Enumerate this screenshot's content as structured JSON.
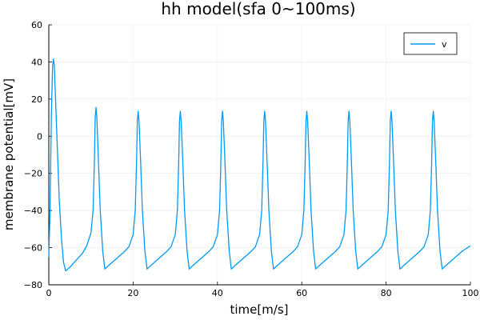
{
  "chart_data": {
    "type": "line",
    "title": "hh model(sfa 0~100ms)",
    "xlabel": "time[m/s]",
    "ylabel": "membrane potential[mV]",
    "xlim": [
      0,
      100
    ],
    "ylim": [
      -80,
      60
    ],
    "x_ticks": [
      0,
      20,
      40,
      60,
      80,
      100
    ],
    "y_ticks": [
      -80,
      -60,
      -40,
      -20,
      0,
      20,
      40,
      60
    ],
    "x_tick_labels": [
      "0",
      "20",
      "40",
      "60",
      "80",
      "100"
    ],
    "y_tick_labels": [
      "−80",
      "−60",
      "−40",
      "−20",
      "0",
      "20",
      "40",
      "60"
    ],
    "grid": true,
    "legend_position": "top-right",
    "series": [
      {
        "name": "v",
        "color": "#009AFA",
        "points": [
          [
            0,
            -65
          ],
          [
            0.3,
            -40
          ],
          [
            0.6,
            10
          ],
          [
            0.9,
            38
          ],
          [
            1.1,
            41.5
          ],
          [
            1.3,
            38
          ],
          [
            1.6,
            20
          ],
          [
            2.0,
            -5
          ],
          [
            2.5,
            -35
          ],
          [
            3.0,
            -55
          ],
          [
            3.5,
            -68
          ],
          [
            4.0,
            -72.5
          ],
          [
            5,
            -70.5
          ],
          [
            6,
            -68
          ],
          [
            7,
            -65.5
          ],
          [
            8,
            -63
          ],
          [
            9,
            -59
          ],
          [
            10,
            -52
          ],
          [
            10.5,
            -40
          ],
          [
            10.8,
            -15
          ],
          [
            11.0,
            10
          ],
          [
            11.2,
            15.5
          ],
          [
            11.4,
            10
          ],
          [
            11.8,
            -15
          ],
          [
            12.2,
            -40
          ],
          [
            12.8,
            -62
          ],
          [
            13.3,
            -71.5
          ],
          [
            14,
            -70
          ],
          [
            15,
            -68
          ],
          [
            16,
            -66
          ],
          [
            17,
            -64
          ],
          [
            18,
            -62
          ],
          [
            19,
            -59.5
          ],
          [
            20,
            -53
          ],
          [
            20.5,
            -40
          ],
          [
            20.8,
            -15
          ],
          [
            21.0,
            8
          ],
          [
            21.2,
            13.5
          ],
          [
            21.4,
            8
          ],
          [
            21.8,
            -15
          ],
          [
            22.2,
            -40
          ],
          [
            22.8,
            -62
          ],
          [
            23.3,
            -71.5
          ],
          [
            24,
            -70
          ],
          [
            25,
            -68
          ],
          [
            26,
            -66
          ],
          [
            27,
            -64
          ],
          [
            28,
            -62
          ],
          [
            29,
            -59.5
          ],
          [
            30,
            -53
          ],
          [
            30.5,
            -40
          ],
          [
            30.8,
            -15
          ],
          [
            31.0,
            8
          ],
          [
            31.2,
            13.5
          ],
          [
            31.4,
            8
          ],
          [
            31.8,
            -15
          ],
          [
            32.2,
            -40
          ],
          [
            32.8,
            -62
          ],
          [
            33.3,
            -71.5
          ],
          [
            34,
            -70
          ],
          [
            35,
            -68
          ],
          [
            36,
            -66
          ],
          [
            37,
            -64
          ],
          [
            38,
            -62
          ],
          [
            39,
            -59.5
          ],
          [
            40,
            -53
          ],
          [
            40.5,
            -40
          ],
          [
            40.8,
            -15
          ],
          [
            41.0,
            8
          ],
          [
            41.2,
            13.5
          ],
          [
            41.4,
            8
          ],
          [
            41.8,
            -15
          ],
          [
            42.2,
            -40
          ],
          [
            42.8,
            -62
          ],
          [
            43.3,
            -71.5
          ],
          [
            44,
            -70
          ],
          [
            45,
            -68
          ],
          [
            46,
            -66
          ],
          [
            47,
            -64
          ],
          [
            48,
            -62
          ],
          [
            49,
            -59.5
          ],
          [
            50,
            -53
          ],
          [
            50.5,
            -40
          ],
          [
            50.8,
            -15
          ],
          [
            51.0,
            8
          ],
          [
            51.2,
            13.5
          ],
          [
            51.4,
            8
          ],
          [
            51.8,
            -15
          ],
          [
            52.2,
            -40
          ],
          [
            52.8,
            -62
          ],
          [
            53.3,
            -71.5
          ],
          [
            54,
            -70
          ],
          [
            55,
            -68
          ],
          [
            56,
            -66
          ],
          [
            57,
            -64
          ],
          [
            58,
            -62
          ],
          [
            59,
            -59.5
          ],
          [
            60,
            -53
          ],
          [
            60.5,
            -40
          ],
          [
            60.8,
            -15
          ],
          [
            61.0,
            8
          ],
          [
            61.2,
            13.5
          ],
          [
            61.4,
            8
          ],
          [
            61.8,
            -15
          ],
          [
            62.2,
            -40
          ],
          [
            62.8,
            -62
          ],
          [
            63.3,
            -71.5
          ],
          [
            64,
            -70
          ],
          [
            65,
            -68
          ],
          [
            66,
            -66
          ],
          [
            67,
            -64
          ],
          [
            68,
            -62
          ],
          [
            69,
            -59.5
          ],
          [
            70,
            -53
          ],
          [
            70.5,
            -40
          ],
          [
            70.8,
            -15
          ],
          [
            71.0,
            8
          ],
          [
            71.2,
            13.5
          ],
          [
            71.4,
            8
          ],
          [
            71.8,
            -15
          ],
          [
            72.2,
            -40
          ],
          [
            72.8,
            -62
          ],
          [
            73.3,
            -71.5
          ],
          [
            74,
            -70
          ],
          [
            75,
            -68
          ],
          [
            76,
            -66
          ],
          [
            77,
            -64
          ],
          [
            78,
            -62
          ],
          [
            79,
            -59.5
          ],
          [
            80,
            -53
          ],
          [
            80.5,
            -40
          ],
          [
            80.8,
            -15
          ],
          [
            81.0,
            8
          ],
          [
            81.2,
            13.5
          ],
          [
            81.4,
            8
          ],
          [
            81.8,
            -15
          ],
          [
            82.2,
            -40
          ],
          [
            82.8,
            -62
          ],
          [
            83.3,
            -71.5
          ],
          [
            84,
            -70
          ],
          [
            85,
            -68
          ],
          [
            86,
            -66
          ],
          [
            87,
            -64
          ],
          [
            88,
            -62
          ],
          [
            89,
            -59.5
          ],
          [
            90,
            -53
          ],
          [
            90.5,
            -40
          ],
          [
            90.8,
            -15
          ],
          [
            91.0,
            8
          ],
          [
            91.2,
            13.5
          ],
          [
            91.4,
            8
          ],
          [
            91.8,
            -15
          ],
          [
            92.2,
            -40
          ],
          [
            92.8,
            -62
          ],
          [
            93.3,
            -71.5
          ],
          [
            94,
            -70
          ],
          [
            95,
            -68
          ],
          [
            96,
            -66
          ],
          [
            97,
            -64
          ],
          [
            98,
            -62
          ],
          [
            99,
            -60.5
          ],
          [
            100,
            -59
          ]
        ]
      }
    ]
  }
}
